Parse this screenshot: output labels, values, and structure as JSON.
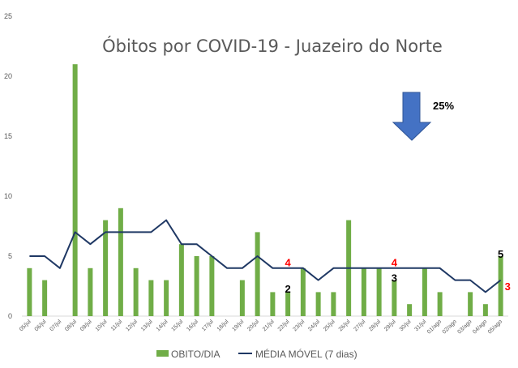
{
  "chart_data": {
    "type": "bar",
    "title": "Óbitos por COVID-19 - Juazeiro do Norte",
    "xlabel": "",
    "ylabel": "",
    "ylim": [
      0,
      25
    ],
    "yticks": [
      "0",
      "5",
      "10",
      "15",
      "20",
      "25"
    ],
    "categories": [
      "05/jul",
      "06/jul",
      "07/jul",
      "08/jul",
      "09/jul",
      "10/jul",
      "11/jul",
      "12/jul",
      "13/jul",
      "14/jul",
      "15/jul",
      "16/jul",
      "17/jul",
      "18/jul",
      "19/jul",
      "20/jul",
      "21/jul",
      "22/jul",
      "23/jul",
      "24/jul",
      "25/jul",
      "26/jul",
      "27/jul",
      "28/jul",
      "29/jul",
      "30/jul",
      "31/jul",
      "01/ago",
      "02/ago",
      "03/ago",
      "04/ago",
      "05/ago"
    ],
    "series": [
      {
        "name": "OBITO/DIA",
        "kind": "bar",
        "color": "#70ad47",
        "values": [
          4,
          3,
          0,
          21,
          4,
          8,
          9,
          4,
          3,
          3,
          6,
          5,
          5,
          0,
          3,
          7,
          2,
          2,
          4,
          2,
          2,
          8,
          4,
          4,
          3,
          1,
          4,
          2,
          0,
          2,
          1,
          5
        ]
      },
      {
        "name": "MÉDIA MÓVEL (7 dias)",
        "kind": "line",
        "color": "#1f3864",
        "values": [
          5,
          5,
          4,
          7,
          6,
          7,
          7,
          7,
          7,
          8,
          6,
          6,
          5,
          4,
          4,
          5,
          4,
          4,
          4,
          3,
          4,
          4,
          4,
          4,
          4,
          4,
          4,
          4,
          3,
          3,
          2,
          3
        ]
      }
    ],
    "annotations": [
      {
        "text": "4",
        "color": "#ff0000",
        "category": "22/jul",
        "y": 4.5
      },
      {
        "text": "2",
        "color": "#000000",
        "category": "22/jul",
        "y": 2.3
      },
      {
        "text": "4",
        "color": "#ff0000",
        "category": "29/jul",
        "y": 4.5
      },
      {
        "text": "3",
        "color": "#000000",
        "category": "29/jul",
        "y": 3.2
      },
      {
        "text": "5",
        "color": "#000000",
        "category": "05/ago",
        "y": 5.2
      },
      {
        "text": "3",
        "color": "#ff0000",
        "category": "05/ago",
        "y": 2.5,
        "side": "right"
      }
    ],
    "arrow": {
      "direction": "down",
      "color": "#4472c4",
      "label": "25%"
    },
    "legend_position": "bottom",
    "grid": false
  }
}
